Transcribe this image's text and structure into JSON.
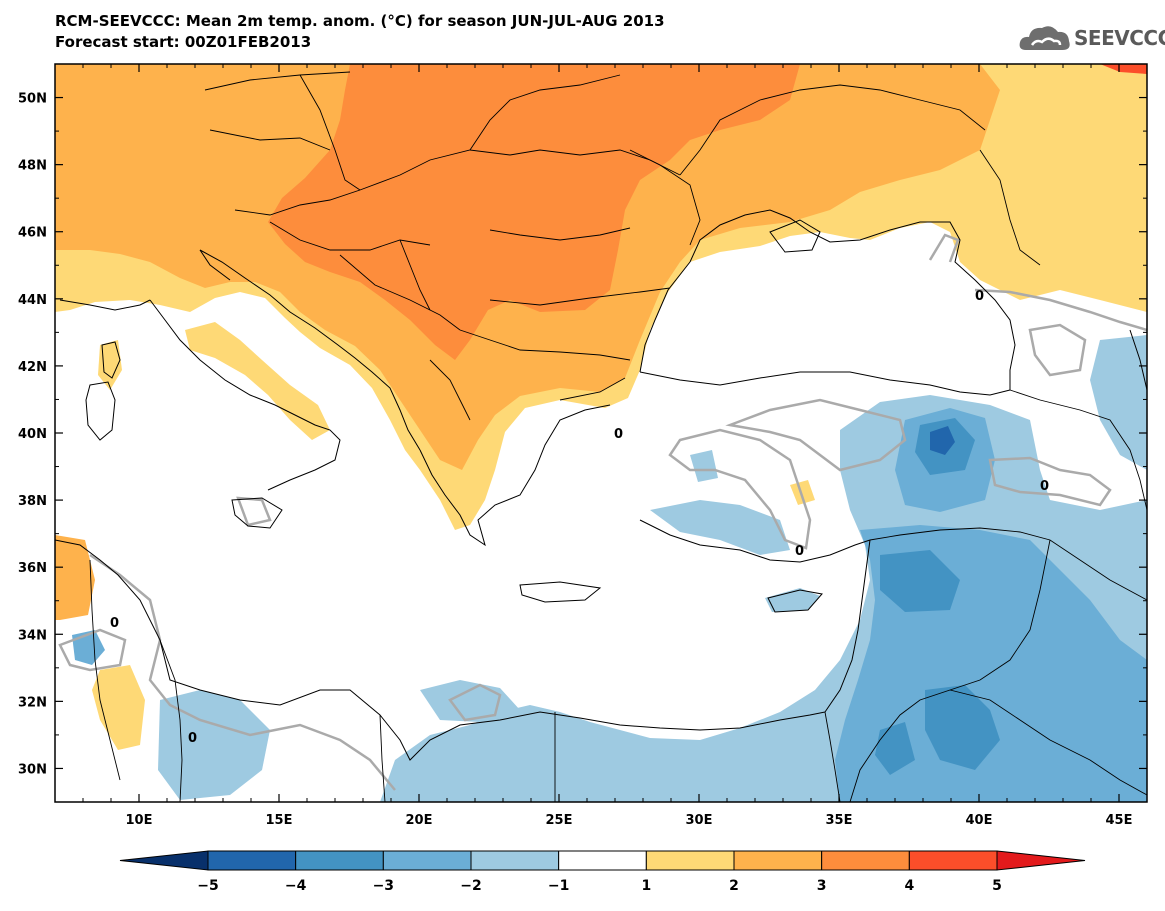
{
  "header": {
    "title": "RCM-SEEVCCC: Mean 2m temp. anom. (°C) for season JUN-JUL-AUG 2013",
    "subtitle": "Forecast start: 00Z01FEB2013"
  },
  "logo": {
    "text": "SEEVCCC",
    "icon": "cloud-logo-icon"
  },
  "chart_data": {
    "type": "heatmap",
    "title": "RCM-SEEVCCC: Mean 2m temp. anom. (°C) for season JUN-JUL-AUG 2013",
    "xlim": [
      7,
      46
    ],
    "ylim": [
      29,
      51
    ],
    "x_ticks": [
      10,
      15,
      20,
      25,
      30,
      35,
      40,
      45
    ],
    "y_ticks": [
      30,
      32,
      34,
      36,
      38,
      40,
      42,
      44,
      46,
      48,
      50
    ],
    "x_tick_labels": [
      "10E",
      "15E",
      "20E",
      "25E",
      "30E",
      "35E",
      "40E",
      "45E"
    ],
    "y_tick_labels": [
      "30N",
      "32N",
      "34N",
      "36N",
      "38N",
      "40N",
      "42N",
      "44N",
      "46N",
      "48N",
      "50N"
    ],
    "contour_label": "0",
    "colorbar": {
      "levels": [
        -5,
        -4,
        -3,
        -2,
        -1,
        1,
        2,
        3,
        4,
        5
      ],
      "labels": [
        "−5",
        "−4",
        "−3",
        "−2",
        "−1",
        "1",
        "2",
        "3",
        "4",
        "5"
      ],
      "colors": [
        "#08306b",
        "#2166ac",
        "#4393c3",
        "#6baed6",
        "#9ecae1",
        "#ffffff",
        "#fed976",
        "#feb24c",
        "#fd8d3c",
        "#fc4e2a",
        "#e31a1c"
      ]
    }
  }
}
